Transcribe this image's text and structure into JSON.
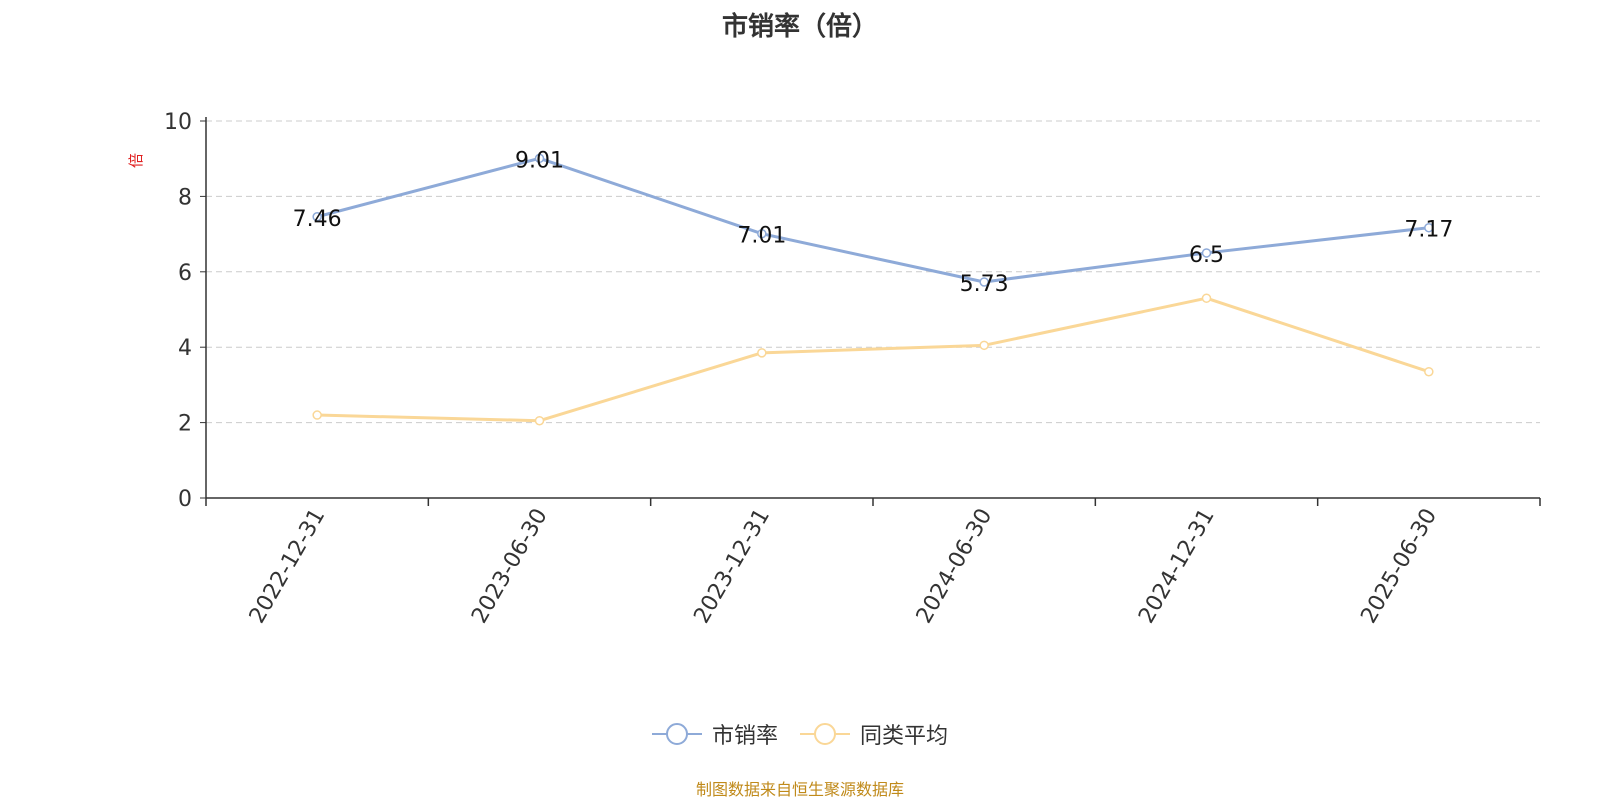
{
  "chart_data": {
    "type": "line",
    "title": "市销率（倍）",
    "xlabel": "",
    "ylabel": "倍",
    "categories": [
      "2022-12-31",
      "2023-06-30",
      "2023-12-31",
      "2024-06-30",
      "2024-12-31",
      "2025-06-30"
    ],
    "ylim": [
      0,
      10
    ],
    "yticks": [
      0,
      2,
      4,
      6,
      8,
      10
    ],
    "grid": true,
    "legend_position": "bottom",
    "series": [
      {
        "name": "市销率",
        "values": [
          7.46,
          9.01,
          7.01,
          5.73,
          6.5,
          7.17
        ],
        "labels": [
          "7.46",
          "9.01",
          "7.01",
          "5.73",
          "6.5",
          "7.17"
        ],
        "color": "#8eaad8"
      },
      {
        "name": "同类平均",
        "values": [
          2.2,
          2.05,
          3.85,
          4.05,
          5.3,
          3.35
        ],
        "color": "#fad797"
      }
    ]
  },
  "footer": {
    "source": "制图数据来自恒生聚源数据库"
  }
}
